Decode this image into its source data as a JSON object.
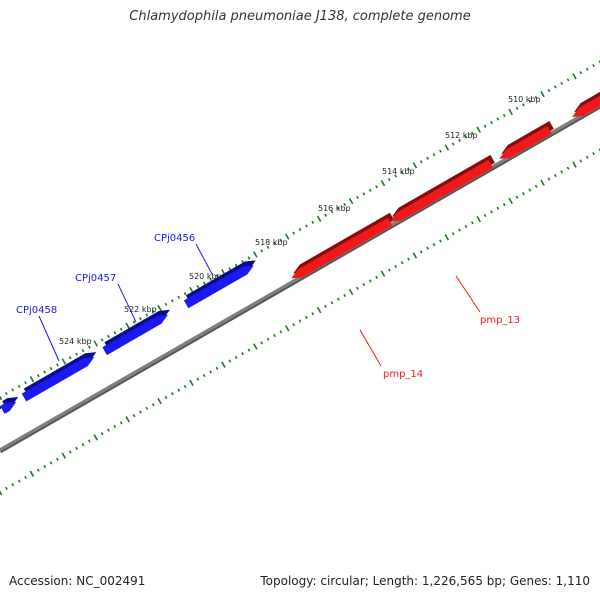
{
  "title": "Chlamydophila pneumoniae J138, complete genome",
  "footer": {
    "accession": "Accession: NC_002491",
    "summary": "Topology: circular; Length: 1,226,565 bp; Genes: 1,110"
  },
  "colors": {
    "forward": "#1a1aee",
    "reverse": "#ee1a1a",
    "backbone": "#808080",
    "ticks": "#1e7a1e"
  },
  "tick_labels": [
    "510 kbp",
    "512 kbp",
    "514 kbp",
    "516 kbp",
    "518 kbp",
    "520 kbp",
    "522 kbp",
    "524 kbp"
  ],
  "forward_genes": [
    {
      "label": "CPj0456"
    },
    {
      "label": "CPj0457"
    },
    {
      "label": "CPj0458"
    }
  ],
  "reverse_genes": [
    {
      "label": "pmp_13"
    },
    {
      "label": "pmp_14"
    }
  ]
}
